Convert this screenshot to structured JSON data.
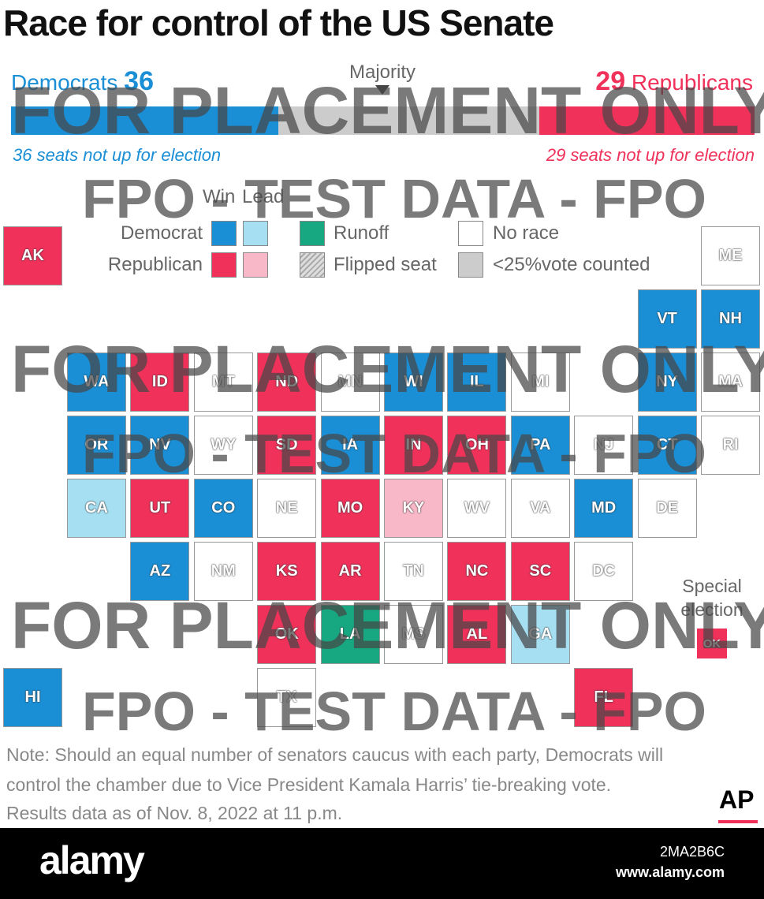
{
  "header": {
    "title": "Race for control of the US Senate"
  },
  "balance": {
    "democrats": {
      "label": "Democrats",
      "count": "36",
      "note": "36 seats not up for election"
    },
    "republicans": {
      "label": "Republicans",
      "count": "29",
      "note": "29 seats not up for election"
    },
    "majority": "Majority"
  },
  "legend": {
    "win": "Win",
    "lead": "Lead",
    "democrat": "Democrat",
    "republican": "Republican",
    "runoff": "Runoff",
    "flipped": "Flipped seat",
    "no_race": "No race",
    "under_counted": "<25%vote counted"
  },
  "tiles": [
    {
      "label": "AK",
      "color": "#f0315a"
    },
    {
      "label": "ME",
      "color": "#ffffff"
    },
    {
      "label": "VT",
      "color": "#1a8fd6"
    },
    {
      "label": "NH",
      "color": "#1a8fd6"
    },
    {
      "label": "WA",
      "color": "#1a8fd6"
    },
    {
      "label": "ID",
      "color": "#f0315a"
    },
    {
      "label": "MT",
      "color": "#ffffff"
    },
    {
      "label": "ND",
      "color": "#f0315a"
    },
    {
      "label": "MN",
      "color": "#ffffff"
    },
    {
      "label": "WI",
      "color": "#1a8fd6"
    },
    {
      "label": "IL",
      "color": "#1a8fd6"
    },
    {
      "label": "MI",
      "color": "#ffffff"
    },
    {
      "label": "NY",
      "color": "#1a8fd6"
    },
    {
      "label": "MA",
      "color": "#ffffff"
    },
    {
      "label": "OR",
      "color": "#1a8fd6"
    },
    {
      "label": "NV",
      "color": "#1a8fd6"
    },
    {
      "label": "WY",
      "color": "#ffffff"
    },
    {
      "label": "SD",
      "color": "#f0315a"
    },
    {
      "label": "IA",
      "color": "#1a8fd6"
    },
    {
      "label": "IN",
      "color": "#f0315a"
    },
    {
      "label": "OH",
      "color": "#f0315a"
    },
    {
      "label": "PA",
      "color": "#1a8fd6"
    },
    {
      "label": "NJ",
      "color": "#ffffff"
    },
    {
      "label": "CT",
      "color": "#1a8fd6"
    },
    {
      "label": "RI",
      "color": "#ffffff"
    },
    {
      "label": "CA",
      "color": "#a6dff2"
    },
    {
      "label": "UT",
      "color": "#f0315a"
    },
    {
      "label": "CO",
      "color": "#1a8fd6"
    },
    {
      "label": "NE",
      "color": "#ffffff"
    },
    {
      "label": "MO",
      "color": "#f0315a"
    },
    {
      "label": "KY",
      "color": "#f9b8c8"
    },
    {
      "label": "WV",
      "color": "#ffffff"
    },
    {
      "label": "VA",
      "color": "#ffffff"
    },
    {
      "label": "MD",
      "color": "#1a8fd6"
    },
    {
      "label": "DE",
      "color": "#ffffff"
    },
    {
      "label": "AZ",
      "color": "#1a8fd6"
    },
    {
      "label": "NM",
      "color": "#ffffff"
    },
    {
      "label": "KS",
      "color": "#f0315a"
    },
    {
      "label": "AR",
      "color": "#f0315a"
    },
    {
      "label": "TN",
      "color": "#ffffff"
    },
    {
      "label": "NC",
      "color": "#f0315a"
    },
    {
      "label": "SC",
      "color": "#f0315a"
    },
    {
      "label": "DC",
      "color": "#ffffff"
    },
    {
      "label": "OK",
      "color": "#f0315a"
    },
    {
      "label": "LA",
      "color": "#17a882"
    },
    {
      "label": "MS",
      "color": "#ffffff"
    },
    {
      "label": "AL",
      "color": "#f0315a"
    },
    {
      "label": "GA",
      "color": "#a6dff2"
    },
    {
      "label": "TX",
      "color": "#ffffff"
    },
    {
      "label": "FL",
      "color": "#f0315a"
    },
    {
      "label": "HI",
      "color": "#1a8fd6"
    }
  ],
  "special": {
    "label": "Special election",
    "tile": {
      "label": "OK",
      "color": "#f0315a"
    }
  },
  "notes": [
    "Note: Should an equal number of senators caucus with each party, Democrats will",
    "control the chamber due to Vice President Kamala Harris’ tie-breaking vote.",
    "Results data as of Nov. 8, 2022 at 11 p.m."
  ],
  "logo": "AP",
  "watermarks": {
    "placement": "FOR PLACEMENT ONLY",
    "test": "FPO - TEST DATA - FPO"
  },
  "footer": {
    "brand": "alamy",
    "id": "2MA2B6C",
    "url": "www.alamy.com"
  }
}
